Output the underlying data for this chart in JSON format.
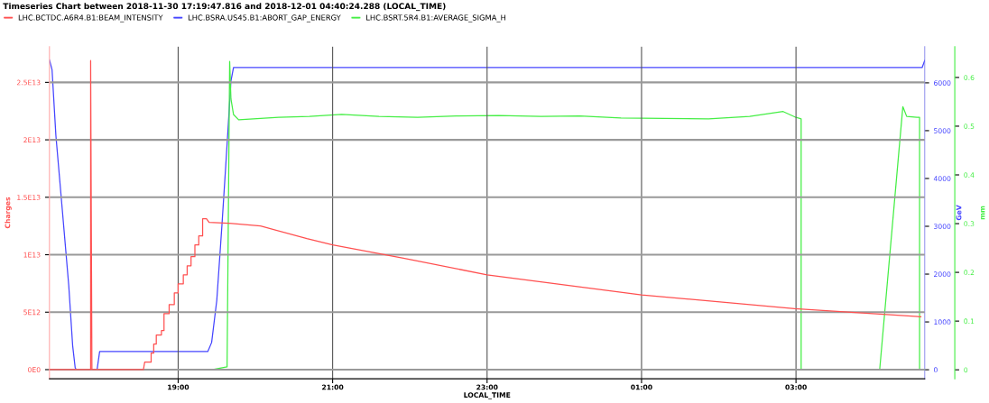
{
  "chart_data": {
    "type": "line",
    "title": "Timeseries Chart between 2018-11-30 17:19:47.816 and 2018-12-01 04:40:24.288 (LOCAL_TIME)",
    "xlabel": "LOCAL_TIME",
    "ylabel": "Charges",
    "y2label": "GeV",
    "y3label": "mm",
    "xlim": [
      "2018-11-30T17:20",
      "2018-12-01T04:40"
    ],
    "xticks": [
      {
        "value": "2018-11-30T19:00",
        "label": "19:00"
      },
      {
        "value": "2018-11-30T21:00",
        "label": "21:00"
      },
      {
        "value": "2018-11-30T23:00",
        "label": "23:00"
      },
      {
        "value": "2018-12-01T01:00",
        "label": "01:00"
      },
      {
        "value": "2018-12-01T03:00",
        "label": "03:00"
      }
    ],
    "ylim": [
      -800000000000.0,
      28100000000000.0
    ],
    "yticks": [
      {
        "value": 0,
        "label": "0E0"
      },
      {
        "value": 5000000000000.0,
        "label": "5E12"
      },
      {
        "value": 10000000000000.0,
        "label": "1E13"
      },
      {
        "value": 15000000000000.0,
        "label": "1.5E13"
      },
      {
        "value": 20000000000000.0,
        "label": "2E13"
      },
      {
        "value": 25000000000000.0,
        "label": "2.5E13"
      }
    ],
    "y2lim": [
      -190,
      6755
    ],
    "y2ticks": [
      0,
      1000,
      2000,
      3000,
      4000,
      5000,
      6000
    ],
    "y3lim": [
      -0.0185,
      0.663
    ],
    "y3ticks": [
      0,
      0.1,
      0.2,
      0.3,
      0.4,
      0.5,
      0.6
    ],
    "grid": true,
    "legend": "top left",
    "marker": "none",
    "line_style": "solid",
    "series": [
      {
        "name": "LHC.BCTDC.A6R4.B1:BEAM_INTENSITY",
        "color": "#ff5050",
        "axis": "y",
        "x": [
          "2018-11-30T17:20",
          "2018-11-30T17:52",
          "2018-11-30T17:52",
          "2018-11-30T17:53",
          "2018-11-30T18:33",
          "2018-11-30T18:34",
          "2018-11-30T18:39",
          "2018-11-30T18:39",
          "2018-11-30T18:41",
          "2018-11-30T18:41",
          "2018-11-30T18:43",
          "2018-11-30T18:43",
          "2018-11-30T18:47",
          "2018-11-30T18:47",
          "2018-11-30T18:49",
          "2018-11-30T18:49",
          "2018-11-30T18:53",
          "2018-11-30T18:53",
          "2018-11-30T18:57",
          "2018-11-30T18:57",
          "2018-11-30T19:00",
          "2018-11-30T19:00",
          "2018-11-30T19:04",
          "2018-11-30T19:04",
          "2018-11-30T19:07",
          "2018-11-30T19:07",
          "2018-11-30T19:10",
          "2018-11-30T19:10",
          "2018-11-30T19:13",
          "2018-11-30T19:13",
          "2018-11-30T19:16",
          "2018-11-30T19:16",
          "2018-11-30T19:19",
          "2018-11-30T19:19",
          "2018-11-30T19:22",
          "2018-11-30T19:24",
          "2018-11-30T19:39",
          "2018-11-30T20:04",
          "2018-11-30T20:40",
          "2018-11-30T21:00",
          "2018-11-30T21:55",
          "2018-11-30T23:00",
          "2018-12-01T01:00",
          "2018-12-01T02:59",
          "2018-12-01T04:37"
        ],
        "values": [
          0,
          0,
          26900000000000.0,
          0,
          0,
          650000000000.0,
          650000000000.0,
          1440000000000.0,
          1440000000000.0,
          2220000000000.0,
          2220000000000.0,
          3010000000000.0,
          3010000000000.0,
          3400000000000.0,
          3400000000000.0,
          4870000000000.0,
          4870000000000.0,
          5660000000000.0,
          5660000000000.0,
          6680000000000.0,
          6680000000000.0,
          7470000000000.0,
          7470000000000.0,
          8250000000000.0,
          8250000000000.0,
          9040000000000.0,
          9040000000000.0,
          9830000000000.0,
          9830000000000.0,
          10850000000000.0,
          10850000000000.0,
          11640000000000.0,
          11640000000000.0,
          13130000000000.0,
          13130000000000.0,
          12810000000000.0,
          12740000000000.0,
          12500000000000.0,
          11400000000000.0,
          10850000000000.0,
          9700000000000.0,
          8250000000000.0,
          6500000000000.0,
          5300000000000.0,
          4600000000000.0
        ]
      },
      {
        "name": "LHC.BSRA.US45.B1:ABORT_GAP_ENERGY",
        "color": "#4444ff",
        "axis": "y2",
        "x": [
          "2018-11-30T17:20",
          "2018-11-30T17:22",
          "2018-11-30T17:25",
          "2018-11-30T17:30",
          "2018-11-30T17:35",
          "2018-11-30T17:38",
          "2018-11-30T17:40",
          "2018-11-30T17:41",
          "2018-11-30T17:57",
          "2018-11-30T17:59",
          "2018-11-30T19:23",
          "2018-11-30T19:26",
          "2018-11-30T19:30",
          "2018-11-30T19:34",
          "2018-11-30T19:37",
          "2018-11-30T19:39",
          "2018-11-30T19:41",
          "2018-11-30T19:43",
          "2018-12-01T04:38",
          "2018-12-01T04:40"
        ],
        "values": [
          6480,
          6280,
          4900,
          3340,
          1760,
          510,
          40,
          0,
          0,
          380,
          380,
          570,
          1450,
          3020,
          4280,
          5150,
          6040,
          6320,
          6320,
          6470
        ]
      },
      {
        "name": "LHC.BSRT.5R4.B1:AVERAGE_SIGMA_H",
        "color": "#44ee44",
        "axis": "y3",
        "x": [
          "2018-11-30T18:24",
          "2018-11-30T19:26",
          "2018-11-30T19:38",
          "2018-11-30T19:40",
          "2018-11-30T19:41",
          "2018-11-30T19:43",
          "2018-11-30T19:47",
          "2018-11-30T20:18",
          "2018-11-30T20:42",
          "2018-11-30T21:07",
          "2018-11-30T21:36",
          "2018-11-30T22:06",
          "2018-11-30T22:36",
          "2018-11-30T23:09",
          "2018-11-30T23:42",
          "2018-12-01T00:12",
          "2018-12-01T00:44",
          "2018-12-01T01:18",
          "2018-12-01T01:52",
          "2018-12-01T02:24",
          "2018-12-01T02:50",
          "2018-12-01T03:00",
          "2018-12-01T03:04",
          "2018-12-01T03:04",
          "2018-12-01T04:05",
          "2018-12-01T04:23",
          "2018-12-01T04:26",
          "2018-12-01T04:34",
          "2018-12-01T04:36",
          "2018-12-01T04:36",
          "2018-12-01T04:40"
        ],
        "values": [
          0,
          0,
          0.006,
          0.633,
          0.556,
          0.524,
          0.513,
          0.518,
          0.52,
          0.524,
          0.52,
          0.518,
          0.521,
          0.522,
          0.52,
          0.521,
          0.517,
          0.516,
          0.515,
          0.52,
          0.53,
          0.518,
          0.515,
          0,
          0,
          0.54,
          0.52,
          0.518,
          0.518,
          0,
          0
        ]
      }
    ]
  }
}
